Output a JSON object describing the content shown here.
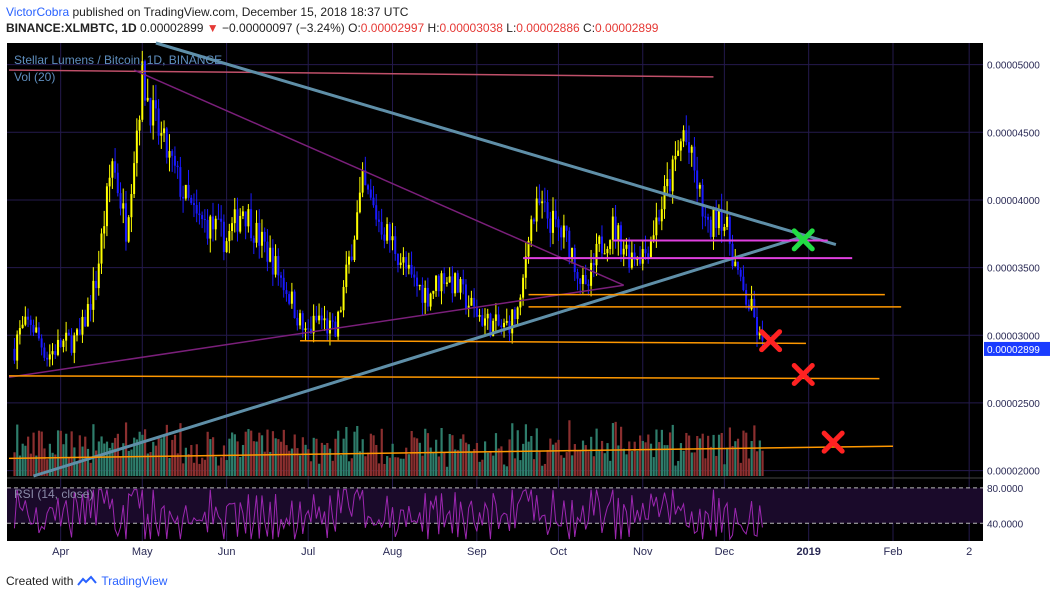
{
  "header": {
    "author": "VictorCobra",
    "published_text": "published on TradingView.com, December 15, 2018 18:37 UTC",
    "symbol": "BINANCE:XLMBTC, 1D",
    "last": "0.00002899",
    "change": "−0.00000097 (−3.24%)",
    "o_label": "O:",
    "o": "0.00002997",
    "h_label": "H:",
    "h": "0.00003038",
    "l_label": "L:",
    "l": "0.00002886",
    "c_label": "C:",
    "c": "0.00002899"
  },
  "footer": {
    "created_with": "Created with",
    "brand": "TradingView"
  },
  "colors": {
    "background": "#000000",
    "grid": "#241a4d",
    "candle_up": "#ffff00",
    "candle_down": "#1a1aff",
    "vol_up": "#2e7d6b",
    "vol_down": "#8b2f2f",
    "trendline": "#5f8fa8",
    "support": "#ff9800",
    "resistance": "#e040e0",
    "rsi": "#9c27b0",
    "price_tag_bg": "#1a3cff"
  },
  "chart_data": {
    "type": "candlestick",
    "title": "Stellar Lumens / Bitcoin, 1D, BINANCE",
    "volume_label": "Vol (20)",
    "rsi_label": "RSI (14, close)",
    "ylim": [
      1.96e-05,
      5.16e-05
    ],
    "y_ticks": [
      "0.00005000",
      "0.00004500",
      "0.00004000",
      "0.00003500",
      "0.00003000",
      "0.00002500",
      "0.00002000"
    ],
    "last_price_tag": "0.00002899",
    "x_ticks": [
      "Apr",
      "May",
      "Jun",
      "Jul",
      "Aug",
      "Sep",
      "Oct",
      "Nov",
      "Dec",
      "2019",
      "Feb",
      "2"
    ],
    "rsi_ticks": [
      "80.0000",
      "40.0000"
    ],
    "series": [
      {
        "points": [
          [
            "2018-03-16",
            3e-05
          ],
          [
            "2018-03-21",
            3.1e-05
          ],
          [
            "2018-03-27",
            2.85e-05
          ],
          [
            "2018-04-01",
            2.93e-05
          ],
          [
            "2018-04-08",
            2.98e-05
          ],
          [
            "2018-04-14",
            3.4e-05
          ],
          [
            "2018-04-20",
            4.3e-05
          ],
          [
            "2018-04-25",
            3.8e-05
          ],
          [
            "2018-05-01",
            4.9e-05
          ],
          [
            "2018-05-06",
            4.55e-05
          ],
          [
            "2018-05-11",
            4.3e-05
          ],
          [
            "2018-05-16",
            4.05e-05
          ],
          [
            "2018-05-21",
            3.85e-05
          ],
          [
            "2018-05-27",
            3.8e-05
          ],
          [
            "2018-06-01",
            3.7e-05
          ],
          [
            "2018-06-07",
            3.95e-05
          ],
          [
            "2018-06-12",
            3.75e-05
          ],
          [
            "2018-06-18",
            3.55e-05
          ],
          [
            "2018-06-24",
            3.3e-05
          ],
          [
            "2018-06-30",
            3e-05
          ],
          [
            "2018-07-05",
            3.13e-05
          ],
          [
            "2018-07-11",
            3e-05
          ],
          [
            "2018-07-16",
            3.55e-05
          ],
          [
            "2018-07-21",
            4.1e-05
          ],
          [
            "2018-07-27",
            3.85e-05
          ],
          [
            "2018-08-02",
            3.65e-05
          ],
          [
            "2018-08-08",
            3.4e-05
          ],
          [
            "2018-08-14",
            3.3e-05
          ],
          [
            "2018-08-20",
            3.45e-05
          ],
          [
            "2018-08-25",
            3.35e-05
          ],
          [
            "2018-08-31",
            3.18e-05
          ],
          [
            "2018-09-06",
            3.08e-05
          ],
          [
            "2018-09-11",
            3.05e-05
          ],
          [
            "2018-09-17",
            3.2e-05
          ],
          [
            "2018-09-20",
            3.8e-05
          ],
          [
            "2018-09-24",
            3.95e-05
          ],
          [
            "2018-09-30",
            3.8e-05
          ],
          [
            "2018-10-05",
            3.68e-05
          ],
          [
            "2018-10-11",
            3.3e-05
          ],
          [
            "2018-10-16",
            3.65e-05
          ],
          [
            "2018-10-21",
            3.8e-05
          ],
          [
            "2018-10-27",
            3.6e-05
          ],
          [
            "2018-11-02",
            3.62e-05
          ],
          [
            "2018-11-07",
            3.9e-05
          ],
          [
            "2018-11-12",
            4.2e-05
          ],
          [
            "2018-11-16",
            4.5e-05
          ],
          [
            "2018-11-20",
            4.2e-05
          ],
          [
            "2018-11-25",
            3.75e-05
          ],
          [
            "2018-11-29",
            3.95e-05
          ],
          [
            "2018-12-03",
            3.7e-05
          ],
          [
            "2018-12-07",
            3.35e-05
          ],
          [
            "2018-12-11",
            3.18e-05
          ],
          [
            "2018-12-15",
            2.9e-05
          ]
        ]
      }
    ],
    "annotations": {
      "check_marks": 1,
      "cross_marks": 3
    }
  }
}
